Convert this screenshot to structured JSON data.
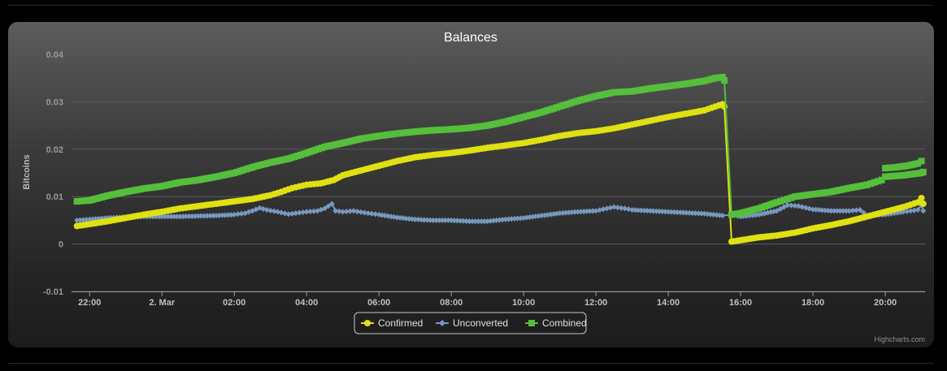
{
  "chart_data": {
    "type": "line",
    "title": "Balances",
    "ylabel": "Bitcoins",
    "xlabel": "",
    "ylim": [
      -0.01,
      0.04
    ],
    "xlim": [
      21.5,
      45.1
    ],
    "yticks": [
      -0.01,
      0,
      0.01,
      0.02,
      0.03,
      0.04
    ],
    "ytick_labels": [
      "-0.01",
      "0",
      "0.01",
      "0.02",
      "0.03",
      "0.04"
    ],
    "xticks": [
      {
        "x": 22,
        "label": "22:00"
      },
      {
        "x": 24,
        "label": "2. Mar"
      },
      {
        "x": 26,
        "label": "02:00"
      },
      {
        "x": 28,
        "label": "04:00"
      },
      {
        "x": 30,
        "label": "06:00"
      },
      {
        "x": 32,
        "label": "08:00"
      },
      {
        "x": 34,
        "label": "10:00"
      },
      {
        "x": 36,
        "label": "12:00"
      },
      {
        "x": 38,
        "label": "14:00"
      },
      {
        "x": 40,
        "label": "16:00"
      },
      {
        "x": 42,
        "label": "18:00"
      },
      {
        "x": 44,
        "label": "20:00"
      }
    ],
    "grid": true,
    "legend_position": "bottom-center",
    "series": [
      {
        "name": "Confirmed",
        "color": "#e0e012",
        "marker": "circle",
        "points": [
          [
            21.65,
            0.0038
          ],
          [
            22.0,
            0.0042
          ],
          [
            22.5,
            0.0048
          ],
          [
            23.0,
            0.0055
          ],
          [
            23.5,
            0.0062
          ],
          [
            24.0,
            0.0068
          ],
          [
            24.5,
            0.0075
          ],
          [
            25.0,
            0.008
          ],
          [
            25.5,
            0.0085
          ],
          [
            26.0,
            0.009
          ],
          [
            26.5,
            0.0095
          ],
          [
            27.0,
            0.0103
          ],
          [
            27.3,
            0.011
          ],
          [
            27.6,
            0.0118
          ],
          [
            28.0,
            0.0125
          ],
          [
            28.4,
            0.0128
          ],
          [
            28.75,
            0.0135
          ],
          [
            29.0,
            0.0145
          ],
          [
            29.5,
            0.0155
          ],
          [
            30.0,
            0.0165
          ],
          [
            30.5,
            0.0175
          ],
          [
            31.0,
            0.0183
          ],
          [
            31.5,
            0.0188
          ],
          [
            32.0,
            0.0192
          ],
          [
            32.5,
            0.0197
          ],
          [
            33.0,
            0.0203
          ],
          [
            33.5,
            0.0208
          ],
          [
            34.0,
            0.0213
          ],
          [
            34.5,
            0.022
          ],
          [
            35.0,
            0.0228
          ],
          [
            35.5,
            0.0234
          ],
          [
            36.0,
            0.0238
          ],
          [
            36.5,
            0.0244
          ],
          [
            37.0,
            0.0252
          ],
          [
            37.5,
            0.026
          ],
          [
            38.0,
            0.0268
          ],
          [
            38.5,
            0.0275
          ],
          [
            39.0,
            0.0282
          ],
          [
            39.3,
            0.029
          ],
          [
            39.5,
            0.0295
          ],
          [
            39.55,
            0.029
          ],
          [
            39.75,
            0.0005
          ],
          [
            40.0,
            0.0008
          ],
          [
            40.5,
            0.0014
          ],
          [
            41.0,
            0.0018
          ],
          [
            41.5,
            0.0024
          ],
          [
            42.0,
            0.0033
          ],
          [
            42.5,
            0.004
          ],
          [
            43.0,
            0.0048
          ],
          [
            43.5,
            0.0058
          ],
          [
            44.0,
            0.0068
          ],
          [
            44.5,
            0.0078
          ],
          [
            44.9,
            0.0088
          ],
          [
            45.0,
            0.0097
          ],
          [
            45.05,
            0.0085
          ]
        ]
      },
      {
        "name": "Unconverted",
        "color": "#7798bf",
        "marker": "diamond",
        "points": [
          [
            21.65,
            0.005
          ],
          [
            22.0,
            0.0052
          ],
          [
            22.5,
            0.0055
          ],
          [
            23.0,
            0.0057
          ],
          [
            23.5,
            0.0058
          ],
          [
            24.0,
            0.0058
          ],
          [
            24.5,
            0.0058
          ],
          [
            25.0,
            0.0059
          ],
          [
            25.5,
            0.006
          ],
          [
            26.0,
            0.0062
          ],
          [
            26.3,
            0.0065
          ],
          [
            26.5,
            0.007
          ],
          [
            26.7,
            0.0076
          ],
          [
            26.9,
            0.0072
          ],
          [
            27.2,
            0.0068
          ],
          [
            27.5,
            0.0063
          ],
          [
            27.8,
            0.0066
          ],
          [
            28.0,
            0.0068
          ],
          [
            28.3,
            0.007
          ],
          [
            28.5,
            0.0075
          ],
          [
            28.7,
            0.0085
          ],
          [
            28.8,
            0.007
          ],
          [
            29.0,
            0.0068
          ],
          [
            29.3,
            0.007
          ],
          [
            29.6,
            0.0066
          ],
          [
            30.0,
            0.0062
          ],
          [
            30.5,
            0.0056
          ],
          [
            31.0,
            0.0052
          ],
          [
            31.5,
            0.005
          ],
          [
            32.0,
            0.005
          ],
          [
            32.5,
            0.0048
          ],
          [
            33.0,
            0.0048
          ],
          [
            33.5,
            0.0052
          ],
          [
            34.0,
            0.0055
          ],
          [
            34.5,
            0.006
          ],
          [
            35.0,
            0.0065
          ],
          [
            35.5,
            0.0068
          ],
          [
            36.0,
            0.007
          ],
          [
            36.3,
            0.0075
          ],
          [
            36.5,
            0.0078
          ],
          [
            36.8,
            0.0075
          ],
          [
            37.0,
            0.0072
          ],
          [
            37.5,
            0.007
          ],
          [
            38.0,
            0.0068
          ],
          [
            38.5,
            0.0066
          ],
          [
            39.0,
            0.0064
          ],
          [
            39.5,
            0.006
          ],
          [
            39.75,
            0.0062
          ],
          [
            40.0,
            0.0058
          ],
          [
            40.5,
            0.0062
          ],
          [
            41.0,
            0.007
          ],
          [
            41.3,
            0.0082
          ],
          [
            41.6,
            0.008
          ],
          [
            42.0,
            0.0073
          ],
          [
            42.5,
            0.007
          ],
          [
            43.0,
            0.007
          ],
          [
            43.3,
            0.0072
          ],
          [
            43.5,
            0.006
          ],
          [
            44.0,
            0.0062
          ],
          [
            44.5,
            0.0068
          ],
          [
            44.9,
            0.0072
          ],
          [
            45.0,
            0.0082
          ],
          [
            45.05,
            0.007
          ]
        ]
      },
      {
        "name": "Combined",
        "color": "#55bf3b",
        "marker": "square",
        "points": [
          [
            21.65,
            0.009
          ],
          [
            22.0,
            0.0092
          ],
          [
            22.5,
            0.0102
          ],
          [
            23.0,
            0.011
          ],
          [
            23.5,
            0.0117
          ],
          [
            24.0,
            0.0122
          ],
          [
            24.5,
            0.013
          ],
          [
            25.0,
            0.0135
          ],
          [
            25.5,
            0.0142
          ],
          [
            26.0,
            0.015
          ],
          [
            26.5,
            0.0162
          ],
          [
            27.0,
            0.0172
          ],
          [
            27.5,
            0.018
          ],
          [
            28.0,
            0.0192
          ],
          [
            28.5,
            0.0205
          ],
          [
            29.0,
            0.0213
          ],
          [
            29.5,
            0.0222
          ],
          [
            30.0,
            0.0228
          ],
          [
            30.5,
            0.0233
          ],
          [
            31.0,
            0.0237
          ],
          [
            31.5,
            0.024
          ],
          [
            32.0,
            0.0242
          ],
          [
            32.5,
            0.0245
          ],
          [
            33.0,
            0.025
          ],
          [
            33.5,
            0.0258
          ],
          [
            34.0,
            0.0268
          ],
          [
            34.5,
            0.0278
          ],
          [
            35.0,
            0.029
          ],
          [
            35.5,
            0.0302
          ],
          [
            36.0,
            0.0312
          ],
          [
            36.5,
            0.032
          ],
          [
            37.0,
            0.0322
          ],
          [
            37.5,
            0.0328
          ],
          [
            38.0,
            0.0333
          ],
          [
            38.5,
            0.0338
          ],
          [
            39.0,
            0.0344
          ],
          [
            39.3,
            0.035
          ],
          [
            39.5,
            0.0352
          ],
          [
            39.55,
            0.0345
          ],
          [
            39.75,
            0.0062
          ],
          [
            40.0,
            0.0065
          ],
          [
            40.5,
            0.0075
          ],
          [
            41.0,
            0.0088
          ],
          [
            41.3,
            0.0095
          ],
          [
            41.5,
            0.01
          ],
          [
            42.0,
            0.0105
          ],
          [
            42.5,
            0.011
          ],
          [
            43.0,
            0.0118
          ],
          [
            43.5,
            0.0125
          ],
          [
            43.9,
            0.0135
          ],
          [
            44.0,
            0.0142
          ],
          [
            44.5,
            0.0145
          ],
          [
            45.0,
            0.015
          ],
          [
            45.05,
            0.0152
          ]
        ]
      }
    ],
    "extra_markers": {
      "Combined": [
        [
          44.0,
          0.016
        ],
        [
          44.3,
          0.0162
        ],
        [
          44.6,
          0.0165
        ],
        [
          44.9,
          0.017
        ],
        [
          45.0,
          0.0175
        ]
      ]
    }
  },
  "credits": "Highcharts.com"
}
